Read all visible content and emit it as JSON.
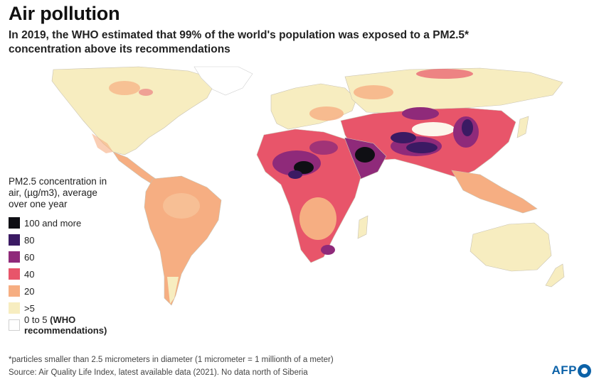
{
  "header": {
    "title": "Air pollution",
    "subtitle": "In 2019, the WHO estimated that 99% of the world's population was exposed to a PM2.5* concentration above its recommendations"
  },
  "legend": {
    "title": "PM2.5 concentration in air, (µg/m3), average over one year",
    "items": [
      {
        "label": "100 and more",
        "color": "#0f0f14"
      },
      {
        "label": "80",
        "color": "#3b1a63"
      },
      {
        "label": "60",
        "color": "#8f2a7a"
      },
      {
        "label": "40",
        "color": "#e8556a"
      },
      {
        "label": "20",
        "color": "#f6ae82"
      },
      {
        "label": ">5",
        "color": "#f7edc0"
      }
    ],
    "who_item": {
      "range": "0 to 5",
      "note": "(WHO recommendations)",
      "color": "#ffffff"
    }
  },
  "footer": {
    "footnote": "*particles smaller than 2.5 micrometers in diameter (1 micrometer = 1 millionth of a meter)",
    "source": "Source: Air Quality Life Index, latest available data (2021). No data north of Siberia",
    "logo": "AFP"
  }
}
